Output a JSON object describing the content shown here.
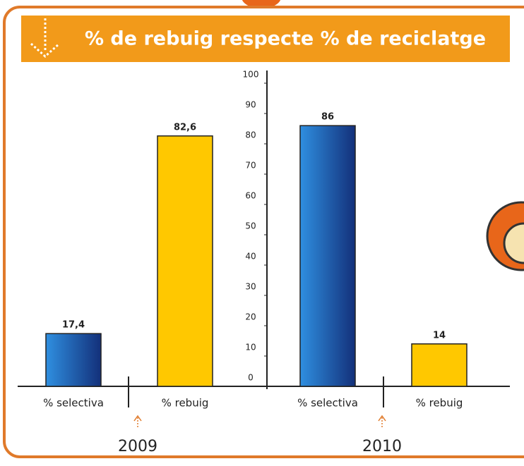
{
  "chart_data": {
    "type": "bar",
    "title": "% de rebuig respecte % de reciclatge",
    "categories": [
      "% selectiva",
      "% rebuig",
      "% selectiva",
      "% rebuig"
    ],
    "values": [
      17.4,
      82.6,
      86,
      14
    ],
    "value_labels": [
      "17,4",
      "82,6",
      "86",
      "14"
    ],
    "colors": [
      "#1a64c0",
      "#ffc800",
      "#1a64c0",
      "#ffc800"
    ],
    "group_labels": [
      "2009",
      "2010"
    ],
    "ylim": [
      0,
      100
    ],
    "yticks": [
      0,
      10,
      20,
      30,
      40,
      50,
      60,
      70,
      80,
      90,
      100
    ]
  }
}
